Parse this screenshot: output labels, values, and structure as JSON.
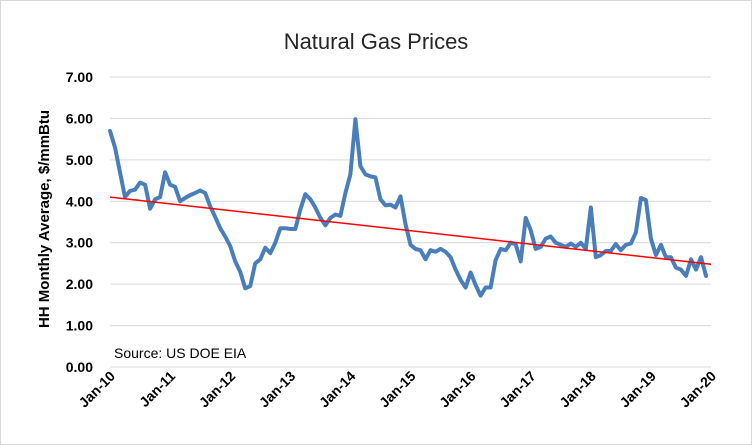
{
  "chart_data": {
    "type": "line",
    "title": "Natural Gas Prices",
    "xlabel": "",
    "ylabel": "HH Monthly Average, $/mmBtu",
    "annotation": "Source: US DOE EIA",
    "ylim": [
      0,
      7
    ],
    "y_ticks": [
      "0.00",
      "1.00",
      "2.00",
      "3.00",
      "4.00",
      "5.00",
      "6.00",
      "7.00"
    ],
    "x_tick_labels": [
      "Jan-10",
      "Jan-11",
      "Jan-12",
      "Jan-13",
      "Jan-14",
      "Jan-15",
      "Jan-16",
      "Jan-17",
      "Jan-18",
      "Jan-19",
      "Jan-20"
    ],
    "grid": "horizontal",
    "legend": "none",
    "x_start": "2010-01",
    "x_end": "2020-01",
    "series": [
      {
        "color": "#4a7ebb",
        "x": [
          "2010-01",
          "2010-02",
          "2010-03",
          "2010-04",
          "2010-05",
          "2010-06",
          "2010-07",
          "2010-08",
          "2010-09",
          "2010-10",
          "2010-11",
          "2010-12",
          "2011-01",
          "2011-02",
          "2011-03",
          "2011-04",
          "2011-05",
          "2011-06",
          "2011-07",
          "2011-08",
          "2011-09",
          "2011-10",
          "2011-11",
          "2011-12",
          "2012-01",
          "2012-02",
          "2012-03",
          "2012-04",
          "2012-05",
          "2012-06",
          "2012-07",
          "2012-08",
          "2012-09",
          "2012-10",
          "2012-11",
          "2012-12",
          "2013-01",
          "2013-02",
          "2013-03",
          "2013-04",
          "2013-05",
          "2013-06",
          "2013-07",
          "2013-08",
          "2013-09",
          "2013-10",
          "2013-11",
          "2013-12",
          "2014-01",
          "2014-02",
          "2014-03",
          "2014-04",
          "2014-05",
          "2014-06",
          "2014-07",
          "2014-08",
          "2014-09",
          "2014-10",
          "2014-11",
          "2014-12",
          "2015-01",
          "2015-02",
          "2015-03",
          "2015-04",
          "2015-05",
          "2015-06",
          "2015-07",
          "2015-08",
          "2015-09",
          "2015-10",
          "2015-11",
          "2015-12",
          "2016-01",
          "2016-02",
          "2016-03",
          "2016-04",
          "2016-05",
          "2016-06",
          "2016-07",
          "2016-08",
          "2016-09",
          "2016-10",
          "2016-11",
          "2016-12",
          "2017-01",
          "2017-02",
          "2017-03",
          "2017-04",
          "2017-05",
          "2017-06",
          "2017-07",
          "2017-08",
          "2017-09",
          "2017-10",
          "2017-11",
          "2017-12",
          "2018-01",
          "2018-02",
          "2018-03",
          "2018-04",
          "2018-05",
          "2018-06",
          "2018-07",
          "2018-08",
          "2018-09",
          "2018-10",
          "2018-11",
          "2018-12",
          "2019-01",
          "2019-02",
          "2019-03",
          "2019-04",
          "2019-05",
          "2019-06",
          "2019-07",
          "2019-08",
          "2019-09",
          "2019-10",
          "2019-11",
          "2019-12"
        ],
        "values": [
          5.7,
          5.3,
          4.7,
          4.1,
          4.25,
          4.28,
          4.45,
          4.4,
          3.82,
          4.05,
          4.1,
          4.7,
          4.4,
          4.35,
          4.0,
          4.08,
          4.15,
          4.2,
          4.26,
          4.2,
          3.88,
          3.62,
          3.35,
          3.15,
          2.92,
          2.55,
          2.3,
          1.9,
          1.95,
          2.5,
          2.6,
          2.88,
          2.75,
          3.0,
          3.35,
          3.35,
          3.33,
          3.33,
          3.8,
          4.17,
          4.05,
          3.85,
          3.6,
          3.42,
          3.6,
          3.68,
          3.65,
          4.2,
          4.65,
          5.98,
          4.85,
          4.65,
          4.6,
          4.58,
          4.05,
          3.9,
          3.92,
          3.85,
          4.12,
          3.45,
          2.95,
          2.85,
          2.82,
          2.6,
          2.82,
          2.78,
          2.85,
          2.78,
          2.65,
          2.35,
          2.1,
          1.92,
          2.28,
          1.98,
          1.72,
          1.92,
          1.92,
          2.58,
          2.85,
          2.82,
          3.0,
          2.96,
          2.55,
          3.6,
          3.3,
          2.85,
          2.9,
          3.1,
          3.15,
          3.0,
          2.95,
          2.9,
          2.98,
          2.9,
          3.0,
          2.85,
          3.85,
          2.65,
          2.7,
          2.8,
          2.8,
          2.97,
          2.82,
          2.95,
          2.98,
          3.25,
          4.08,
          4.03,
          3.1,
          2.7,
          2.95,
          2.65,
          2.65,
          2.4,
          2.35,
          2.2,
          2.6,
          2.35,
          2.65,
          2.2
        ]
      }
    ],
    "trendline": {
      "color": "#ff0000",
      "from": {
        "x": "2010-01",
        "y": 4.1
      },
      "to": {
        "x": "2020-01",
        "y": 2.48
      }
    }
  }
}
